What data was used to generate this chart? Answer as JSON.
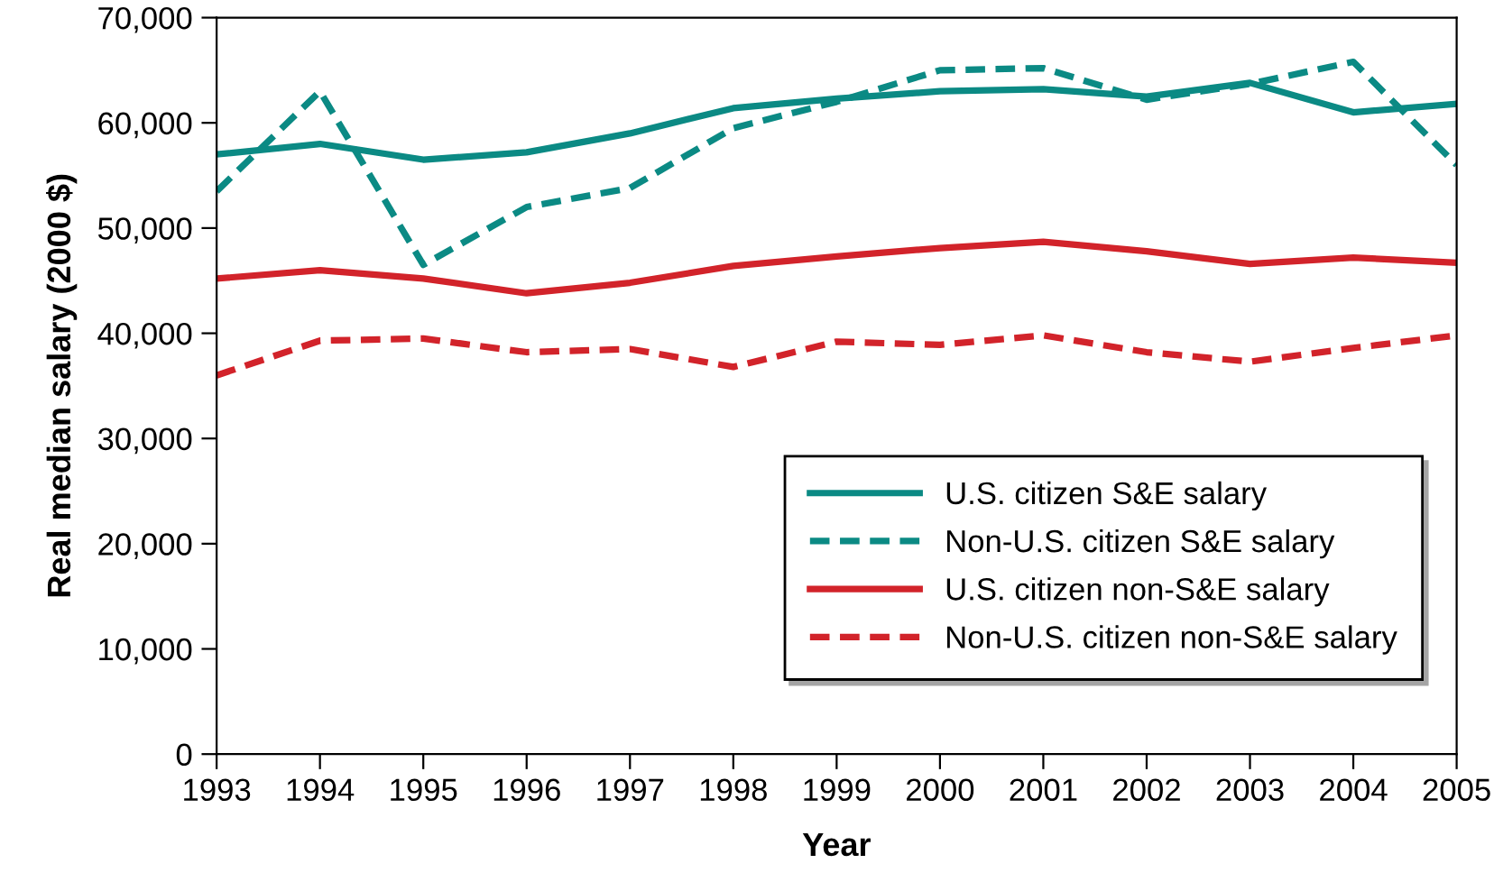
{
  "chart_data": {
    "type": "line",
    "xlabel": "Year",
    "ylabel": "Real median salary (2000 $)",
    "x": [
      1993,
      1994,
      1995,
      1996,
      1997,
      1998,
      1999,
      2000,
      2001,
      2002,
      2003,
      2004,
      2005
    ],
    "xlim": [
      1993,
      2005
    ],
    "xticks": [
      1993,
      1994,
      1995,
      1996,
      1997,
      1998,
      1999,
      2000,
      2001,
      2002,
      2003,
      2004,
      2005
    ],
    "ylim": [
      0,
      70000
    ],
    "yticks": [
      {
        "value": 0,
        "label": "0"
      },
      {
        "value": 10000,
        "label": "10,000"
      },
      {
        "value": 20000,
        "label": "20,000"
      },
      {
        "value": 30000,
        "label": "30,000"
      },
      {
        "value": 40000,
        "label": "40,000"
      },
      {
        "value": 50000,
        "label": "50,000"
      },
      {
        "value": 60000,
        "label": "60,000"
      },
      {
        "value": 70000,
        "label": "70,000"
      }
    ],
    "grid": false,
    "legend": "bottom right",
    "series": [
      {
        "name": "U.S. citizen S&E salary",
        "color": "#0b8a84",
        "line_style": "solid",
        "values": [
          57000,
          58000,
          56500,
          57200,
          59000,
          61400,
          62300,
          63000,
          63200,
          62500,
          63800,
          61000,
          61800
        ]
      },
      {
        "name": "Non-U.S. citizen S&E salary",
        "color": "#0b8a84",
        "line_style": "dashed",
        "values": [
          53500,
          63000,
          46500,
          52000,
          53800,
          59500,
          62000,
          65000,
          65200,
          62200,
          63700,
          65800,
          56000
        ]
      },
      {
        "name": "U.S. citizen non-S&E salary",
        "color": "#d2232a",
        "line_style": "solid",
        "values": [
          45200,
          46000,
          45200,
          43800,
          44800,
          46400,
          47300,
          48100,
          48700,
          47800,
          46600,
          47200,
          46700
        ]
      },
      {
        "name": "Non-U.S. citizen non-S&E salary",
        "color": "#d2232a",
        "line_style": "dashed",
        "values": [
          36000,
          39300,
          39500,
          38200,
          38500,
          36800,
          39200,
          38900,
          39800,
          38200,
          37300,
          38600,
          39800
        ]
      }
    ]
  }
}
